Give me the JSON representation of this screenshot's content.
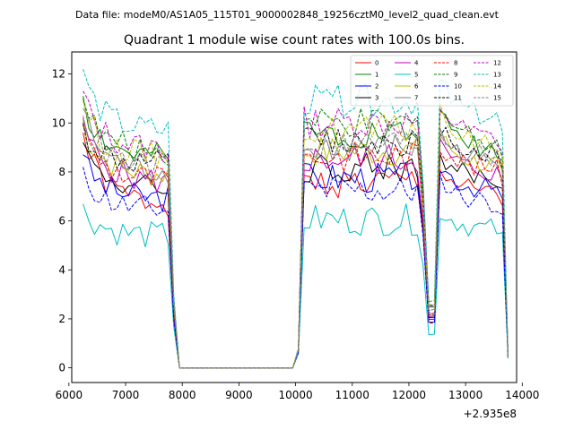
{
  "chart_data": {
    "type": "line",
    "suptitle": "Data file: modeM0/AS1A05_115T01_9000002848_19256cztM0_level2_quad_clean.evt",
    "title": "Quadrant 1 module wise count rates with 100.0s bins.",
    "xlabel": "",
    "ylabel": "",
    "x_offset_label": "+2.935e8",
    "xlim": [
      6050,
      13900
    ],
    "ylim": [
      -0.6,
      12.9
    ],
    "xticks": [
      6000,
      7000,
      8000,
      9000,
      10000,
      11000,
      12000,
      13000,
      14000
    ],
    "xtick_labels": [
      "6000",
      "7000",
      "8000",
      "9000",
      "10000",
      "11000",
      "12000",
      "13000",
      "14000"
    ],
    "yticks": [
      0,
      2,
      4,
      6,
      8,
      10,
      12
    ],
    "ytick_labels": [
      "0",
      "2",
      "4",
      "6",
      "8",
      "10",
      "12"
    ],
    "grid": false,
    "legend_location": "top-right",
    "x": [
      6250,
      6350,
      6450,
      6550,
      6650,
      6750,
      6850,
      6950,
      7050,
      7150,
      7250,
      7350,
      7450,
      7550,
      7650,
      7750,
      7850,
      7950,
      8050,
      8150,
      8250,
      8350,
      8450,
      8550,
      8650,
      8750,
      8850,
      8950,
      9050,
      9150,
      9250,
      9350,
      9450,
      9550,
      9650,
      9750,
      9850,
      9950,
      10050,
      10150,
      10250,
      10350,
      10450,
      10550,
      10650,
      10750,
      10850,
      10950,
      11050,
      11150,
      11250,
      11350,
      11450,
      11550,
      11650,
      11750,
      11850,
      11950,
      12050,
      12150,
      12250,
      12350,
      12450,
      12550,
      12650,
      12750,
      12850,
      12950,
      13050,
      13150,
      13250,
      13350,
      13450,
      13550,
      13650,
      13750
    ],
    "series": [
      {
        "name": "0",
        "color": "#ff0000",
        "dash": "solid",
        "level": 7.0,
        "start": 9.6
      },
      {
        "name": "1",
        "color": "#008000",
        "dash": "solid",
        "level": 8.9,
        "start": 11.1
      },
      {
        "name": "2",
        "color": "#0000ff",
        "dash": "solid",
        "level": 7.2,
        "start": 8.7
      },
      {
        "name": "3",
        "color": "#000000",
        "dash": "solid",
        "level": 7.6,
        "start": 9.2
      },
      {
        "name": "4",
        "color": "#bf00bf",
        "dash": "solid",
        "level": 7.9,
        "start": 10.2
      },
      {
        "name": "5",
        "color": "#00bfbf",
        "dash": "solid",
        "level": 5.6,
        "start": 6.7
      },
      {
        "name": "6",
        "color": "#bfbf00",
        "dash": "solid",
        "level": 8.2,
        "start": 10.1
      },
      {
        "name": "7",
        "color": "#808080",
        "dash": "solid",
        "level": 8.3,
        "start": 10.6
      },
      {
        "name": "8",
        "color": "#ff0000",
        "dash": "dashed",
        "level": 8.0,
        "start": 9.9
      },
      {
        "name": "9",
        "color": "#008000",
        "dash": "dashed",
        "level": 9.2,
        "start": 11.0
      },
      {
        "name": "10",
        "color": "#0000ff",
        "dash": "dashed",
        "level": 6.7,
        "start": 8.2
      },
      {
        "name": "11",
        "color": "#000000",
        "dash": "dashed",
        "level": 8.6,
        "start": 10.0
      },
      {
        "name": "12",
        "color": "#bf00bf",
        "dash": "dashed",
        "level": 9.3,
        "start": 11.3
      },
      {
        "name": "13",
        "color": "#00bfbf",
        "dash": "dashed",
        "level": 10.1,
        "start": 12.2
      },
      {
        "name": "14",
        "color": "#bfbf00",
        "dash": "dashed",
        "level": 9.0,
        "start": 10.9
      },
      {
        "name": "15",
        "color": "#808080",
        "dash": "dashed",
        "level": 8.5,
        "start": 10.3
      }
    ]
  }
}
